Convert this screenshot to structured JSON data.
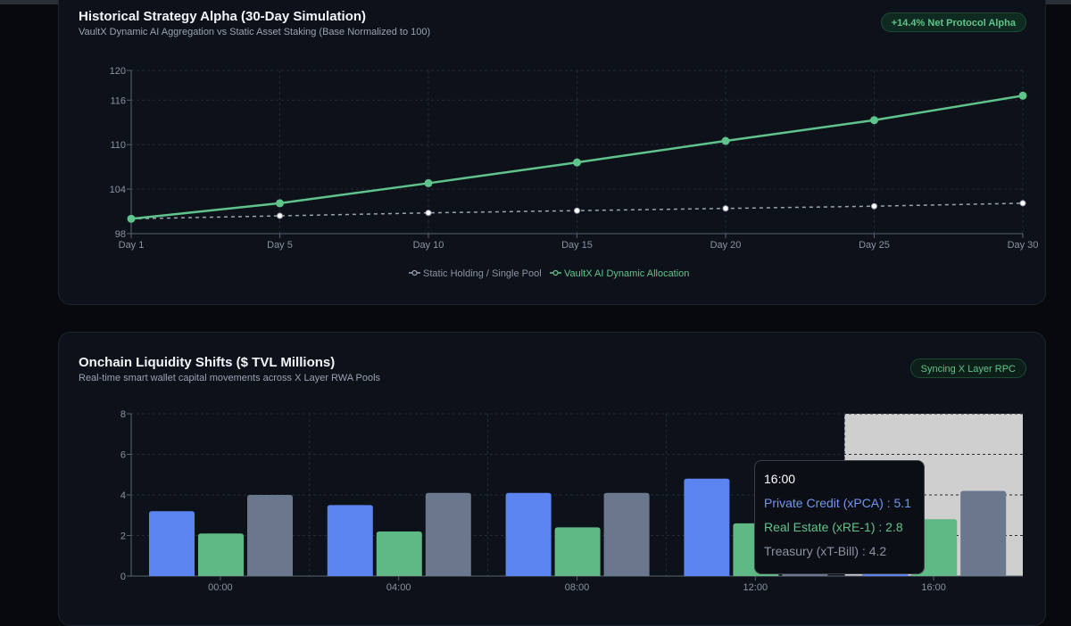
{
  "charts": [
    {
      "title": "Historical Strategy Alpha (30-Day Simulation)",
      "subtitle": "VaultX Dynamic AI Aggregation vs Static Asset Staking (Base Normalized to 100)",
      "badge": "+14.4% Net Protocol Alpha"
    },
    {
      "title": "Onchain Liquidity Shifts ($ TVL Millions)",
      "subtitle": "Real-time smart wallet capital movements across X Layer RWA Pools",
      "badge": "Syncing X Layer RPC"
    }
  ],
  "chart_data": [
    {
      "type": "line",
      "x": [
        "Day 1",
        "Day 5",
        "Day 10",
        "Day 15",
        "Day 20",
        "Day 25",
        "Day 30"
      ],
      "ylim": [
        98,
        120
      ],
      "yticks": [
        98,
        104,
        110,
        116,
        120
      ],
      "grid": true,
      "legend_position": "bottom",
      "series": [
        {
          "name": "Static Holding / Single Pool",
          "color": "#9aa3b2",
          "style": "dashed",
          "values": [
            100,
            100.4,
            100.8,
            101.1,
            101.4,
            101.7,
            102.1
          ]
        },
        {
          "name": "VaultX AI Dynamic Allocation",
          "color": "#5fc48b",
          "style": "solid",
          "values": [
            100,
            102.1,
            104.8,
            107.6,
            110.5,
            113.3,
            116.6
          ]
        }
      ]
    },
    {
      "type": "bar",
      "categories": [
        "00:00",
        "04:00",
        "08:00",
        "12:00",
        "16:00"
      ],
      "ylim": [
        0,
        8
      ],
      "yticks": [
        0,
        2,
        4,
        6,
        8
      ],
      "grid": true,
      "highlighted_category": "16:00",
      "series": [
        {
          "name": "Private Credit (xPCA)",
          "color": "#5b84f0",
          "values": [
            3.2,
            3.5,
            4.1,
            4.8,
            5.1
          ]
        },
        {
          "name": "Real Estate (xRE-1)",
          "color": "#5fb985",
          "values": [
            2.1,
            2.2,
            2.4,
            2.6,
            2.8
          ]
        },
        {
          "name": "Treasury (xT-Bill)",
          "color": "#6b778c",
          "values": [
            4.0,
            4.1,
            4.1,
            4.1,
            4.2
          ]
        }
      ],
      "tooltip": {
        "title": "16:00",
        "rows": [
          "Private Credit (xPCA) : 5.1",
          "Real Estate (xRE-1) : 2.8",
          "Treasury (xT-Bill) : 4.2"
        ]
      }
    }
  ]
}
